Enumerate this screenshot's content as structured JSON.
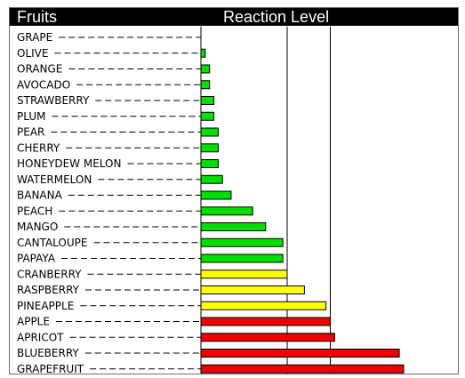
{
  "header": {
    "left_title": "Fruits",
    "right_title": "Reaction Level"
  },
  "colors": {
    "green": "#00dd00",
    "yellow": "#ffff00",
    "red": "#ee0000",
    "stroke": "#000000"
  },
  "chart_data": {
    "type": "bar",
    "orientation": "horizontal",
    "categories": [
      "GRAPE",
      "OLIVE",
      "ORANGE",
      "AVOCADO",
      "STRAWBERRY",
      "PLUM",
      "PEAR",
      "CHERRY",
      "HONEYDEW MELON",
      "WATERMELON",
      "BANANA",
      "PEACH",
      "MANGO",
      "CANTALOUPE",
      "PAPAYA",
      "CRANBERRY",
      "RASPBERRY",
      "PINEAPPLE",
      "APPLE",
      "APRICOT",
      "BLUEBERRY",
      "GRAPEFRUIT"
    ],
    "values": [
      0,
      0.1,
      0.2,
      0.2,
      0.3,
      0.3,
      0.4,
      0.4,
      0.4,
      0.5,
      0.7,
      1.2,
      1.5,
      1.9,
      1.9,
      2.0,
      2.4,
      2.9,
      3.0,
      3.1,
      4.6,
      4.7
    ],
    "levels": [
      "none",
      "low",
      "low",
      "low",
      "low",
      "low",
      "low",
      "low",
      "low",
      "low",
      "low",
      "low",
      "low",
      "low",
      "low",
      "medium",
      "medium",
      "medium",
      "high",
      "high",
      "high",
      "high"
    ],
    "xlim": [
      0,
      5.8
    ],
    "reference_lines": [
      2,
      3
    ],
    "grid": false,
    "legend": "none"
  }
}
